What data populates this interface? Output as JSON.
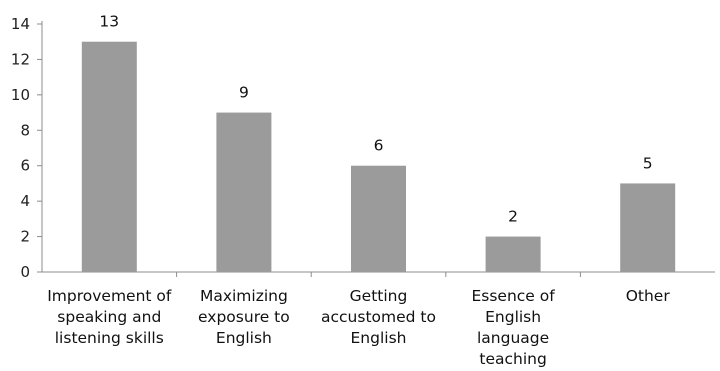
{
  "chart_data": {
    "type": "bar",
    "title": "",
    "xlabel": "",
    "ylabel": "",
    "categories": [
      "Improvement of speaking and listening skills",
      "Maximizing exposure to English",
      "Getting accustomed to English",
      "Essence of English language teaching",
      "Other"
    ],
    "category_lines": [
      [
        "Improvement of",
        "speaking and",
        "listening skills"
      ],
      [
        "Maximizing",
        "exposure to",
        "English"
      ],
      [
        "Getting",
        "accustomed to",
        "English"
      ],
      [
        "Essence of",
        "English",
        "language",
        "teaching"
      ],
      [
        "Other"
      ]
    ],
    "values": [
      13,
      9,
      6,
      2,
      5
    ],
    "ylim": [
      0,
      14
    ],
    "yticks": [
      0,
      2,
      4,
      6,
      8,
      10,
      12,
      14
    ],
    "grid": false,
    "legend": "none",
    "data_labels": true,
    "colors": {
      "bar": "#9b9b9b",
      "axis": "#8c8c8c",
      "text": "#111111"
    }
  }
}
